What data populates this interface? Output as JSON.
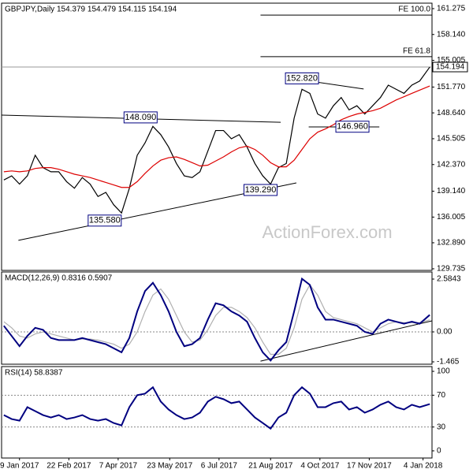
{
  "chart_data": [
    {
      "type": "line",
      "title": "GBPJPY,Daily 154.379 154.479 154.115 154.194",
      "watermark": "ActionForex.com",
      "xlim": [
        "2016-12-24",
        "2018-01-12"
      ],
      "ylim": [
        129.54,
        161.94
      ],
      "yticks": [
        {
          "value": 161.275,
          "label": "161.275"
        },
        {
          "value": 158.14,
          "label": "158.140"
        },
        {
          "value": 155.005,
          "label": "155.005"
        },
        {
          "value": 151.77,
          "label": "151.770"
        },
        {
          "value": 148.64,
          "label": "148.640"
        },
        {
          "value": 145.505,
          "label": "145.505"
        },
        {
          "value": 142.37,
          "label": "142.370"
        },
        {
          "value": 139.14,
          "label": "139.140"
        },
        {
          "value": 136.005,
          "label": "136.005"
        },
        {
          "value": 132.89,
          "label": "132.890"
        },
        {
          "value": 129.735,
          "label": "129.735"
        }
      ],
      "x": [
        "2016-12-26",
        "2017-01-02",
        "2017-01-09",
        "2017-01-16",
        "2017-01-23",
        "2017-01-30",
        "2017-02-06",
        "2017-02-13",
        "2017-02-20",
        "2017-02-27",
        "2017-03-06",
        "2017-03-13",
        "2017-03-20",
        "2017-03-27",
        "2017-04-03",
        "2017-04-10",
        "2017-04-17",
        "2017-04-24",
        "2017-05-01",
        "2017-05-08",
        "2017-05-15",
        "2017-05-22",
        "2017-05-29",
        "2017-06-05",
        "2017-06-12",
        "2017-06-19",
        "2017-06-26",
        "2017-07-03",
        "2017-07-10",
        "2017-07-17",
        "2017-07-24",
        "2017-07-31",
        "2017-08-07",
        "2017-08-14",
        "2017-08-21",
        "2017-08-28",
        "2017-09-04",
        "2017-09-11",
        "2017-09-18",
        "2017-09-25",
        "2017-10-02",
        "2017-10-09",
        "2017-10-16",
        "2017-10-23",
        "2017-10-30",
        "2017-11-06",
        "2017-11-13",
        "2017-11-20",
        "2017-11-27",
        "2017-12-04",
        "2017-12-11",
        "2017-12-18",
        "2017-12-25",
        "2018-01-01",
        "2018-01-10"
      ],
      "series": [
        {
          "color": "#000000",
          "values": [
            140.5,
            141.0,
            140.0,
            141.0,
            143.5,
            142.0,
            141.5,
            141.5,
            140.3,
            139.5,
            140.8,
            140.0,
            138.5,
            139.0,
            137.5,
            136.5,
            139.5,
            143.5,
            145.0,
            147.0,
            146.0,
            144.5,
            142.5,
            141.0,
            140.8,
            141.5,
            144.0,
            146.5,
            146.5,
            145.5,
            146.0,
            144.5,
            142.5,
            141.0,
            140.0,
            142.0,
            142.5,
            148.0,
            151.5,
            151.0,
            148.5,
            148.0,
            149.5,
            150.5,
            149.0,
            149.5,
            148.5,
            149.5,
            150.5,
            152.0,
            151.5,
            151.0,
            152.0,
            152.5,
            154.194
          ]
        },
        {
          "color": "#dd0000",
          "values": [
            141.5,
            141.6,
            141.5,
            141.6,
            141.9,
            142.0,
            142.0,
            141.8,
            141.5,
            141.2,
            141.0,
            140.8,
            140.5,
            140.2,
            139.9,
            139.6,
            139.6,
            140.3,
            141.3,
            142.2,
            142.9,
            143.2,
            143.3,
            143.0,
            142.6,
            142.2,
            142.3,
            142.8,
            143.3,
            143.9,
            144.4,
            144.6,
            144.2,
            143.5,
            142.6,
            142.1,
            142.1,
            142.9,
            144.2,
            145.5,
            146.3,
            146.7,
            147.2,
            147.8,
            148.2,
            148.5,
            148.7,
            148.9,
            149.2,
            149.7,
            150.2,
            150.6,
            151.0,
            151.4,
            151.9
          ]
        }
      ],
      "last": 154.194,
      "levels": [
        {
          "x": "2017-08-12",
          "value": 160.5,
          "label": "FE 100.0"
        },
        {
          "x": "2017-08-12",
          "value": 155.45,
          "label": "FE 61.8"
        }
      ],
      "trendlines": [
        {
          "x": [
            "2016-12-24",
            "2017-08-30"
          ],
          "y": [
            148.37,
            147.5
          ]
        },
        {
          "x": [
            "2017-01-08",
            "2017-09-13"
          ],
          "y": [
            133.18,
            140.15
          ]
        },
        {
          "x": [
            "2017-09-11",
            "2017-11-12"
          ],
          "y": [
            152.77,
            151.53
          ]
        },
        {
          "x": [
            "2017-09-24",
            "2017-11-26"
          ],
          "y": [
            146.94,
            146.94
          ]
        }
      ],
      "annotations": [
        {
          "x": "2017-09-18",
          "value": 152.82,
          "label": "152.820"
        },
        {
          "x": "2017-04-27",
          "value": 148.09,
          "label": "148.090"
        },
        {
          "x": "2017-11-02",
          "value": 146.96,
          "label": "146.960"
        },
        {
          "x": "2017-08-12",
          "value": 139.29,
          "label": "139.290"
        },
        {
          "x": "2017-03-26",
          "value": 135.58,
          "label": "135.580"
        }
      ]
    },
    {
      "type": "line",
      "title": "MACD(12,26,9) 0.8316 0.5907",
      "xlim": [
        "2016-12-24",
        "2018-01-12"
      ],
      "ylim": [
        -1.581,
        2.931
      ],
      "yticks": [
        2.5843,
        {
          "value": 0,
          "label": "0.00"
        },
        -1.465
      ],
      "hlines": [
        0
      ],
      "x": [
        "2016-12-26",
        "2017-01-02",
        "2017-01-09",
        "2017-01-16",
        "2017-01-23",
        "2017-01-30",
        "2017-02-06",
        "2017-02-13",
        "2017-02-20",
        "2017-02-27",
        "2017-03-06",
        "2017-03-13",
        "2017-03-20",
        "2017-03-27",
        "2017-04-03",
        "2017-04-10",
        "2017-04-17",
        "2017-04-24",
        "2017-05-01",
        "2017-05-08",
        "2017-05-15",
        "2017-05-22",
        "2017-05-29",
        "2017-06-05",
        "2017-06-12",
        "2017-06-19",
        "2017-06-26",
        "2017-07-03",
        "2017-07-10",
        "2017-07-17",
        "2017-07-24",
        "2017-07-31",
        "2017-08-07",
        "2017-08-14",
        "2017-08-21",
        "2017-08-28",
        "2017-09-04",
        "2017-09-11",
        "2017-09-18",
        "2017-09-25",
        "2017-10-02",
        "2017-10-09",
        "2017-10-16",
        "2017-10-23",
        "2017-10-30",
        "2017-11-06",
        "2017-11-13",
        "2017-11-20",
        "2017-11-27",
        "2017-12-04",
        "2017-12-11",
        "2017-12-18",
        "2017-12-25",
        "2018-01-01",
        "2018-01-10"
      ],
      "series": [
        {
          "color": "#b0b0b0",
          "values": [
            0.5,
            0.2,
            -0.2,
            -0.3,
            -0.1,
            0.0,
            -0.1,
            -0.2,
            -0.3,
            -0.4,
            -0.35,
            -0.35,
            -0.4,
            -0.5,
            -0.6,
            -0.8,
            -0.6,
            0.0,
            1.0,
            1.8,
            2.1,
            1.6,
            0.8,
            0.0,
            -0.5,
            -0.4,
            0.1,
            0.8,
            1.2,
            1.2,
            1.0,
            0.7,
            0.2,
            -0.5,
            -1.1,
            -1.1,
            -0.8,
            0.2,
            1.6,
            2.3,
            1.8,
            1.0,
            0.7,
            0.6,
            0.5,
            0.4,
            0.2,
            0.0,
            0.2,
            0.4,
            0.5,
            0.45,
            0.45,
            0.45,
            0.5907
          ]
        },
        {
          "color": "#000080",
          "values": [
            0.3,
            -0.2,
            -0.7,
            -0.2,
            0.2,
            0.1,
            -0.3,
            -0.4,
            -0.4,
            -0.4,
            -0.3,
            -0.4,
            -0.5,
            -0.6,
            -0.8,
            -1.0,
            -0.3,
            1.0,
            2.0,
            2.4,
            1.8,
            1.0,
            0.0,
            -0.7,
            -0.6,
            -0.3,
            0.6,
            1.4,
            1.3,
            1.0,
            0.8,
            0.5,
            -0.3,
            -1.0,
            -1.4,
            -0.9,
            -0.5,
            1.0,
            2.6,
            2.3,
            1.2,
            0.6,
            0.6,
            0.5,
            0.4,
            0.3,
            0.0,
            -0.1,
            0.4,
            0.6,
            0.5,
            0.4,
            0.5,
            0.4,
            0.8316
          ]
        }
      ],
      "trendlines": [
        {
          "x": [
            "2017-08-12",
            "2018-01-12"
          ],
          "y": [
            -1.43,
            0.54
          ]
        }
      ]
    },
    {
      "type": "line",
      "title": "RSI(14) 58.8387",
      "xlim": [
        "2016-12-24",
        "2018-01-12"
      ],
      "ylim": [
        -9,
        106
      ],
      "yticks": [
        100,
        70,
        30,
        0
      ],
      "hlines": [
        70,
        30
      ],
      "xticks": [
        {
          "value": "2017-01-09",
          "label": "9 Jan 2017"
        },
        {
          "value": "2017-02-22",
          "label": "22 Feb 2017"
        },
        {
          "value": "2017-04-07",
          "label": "7 Apr 2017"
        },
        {
          "value": "2017-05-23",
          "label": "23 May 2017"
        },
        {
          "value": "2017-07-06",
          "label": "6 Jul 2017"
        },
        {
          "value": "2017-08-21",
          "label": "21 Aug 2017"
        },
        {
          "value": "2017-10-04",
          "label": "4 Oct 2017"
        },
        {
          "value": "2017-11-17",
          "label": "17 Nov 2017"
        },
        {
          "value": "2018-01-04",
          "label": "4 Jan 2018"
        }
      ],
      "x": [
        "2016-12-26",
        "2017-01-02",
        "2017-01-09",
        "2017-01-16",
        "2017-01-23",
        "2017-01-30",
        "2017-02-06",
        "2017-02-13",
        "2017-02-20",
        "2017-02-27",
        "2017-03-06",
        "2017-03-13",
        "2017-03-20",
        "2017-03-27",
        "2017-04-03",
        "2017-04-10",
        "2017-04-17",
        "2017-04-24",
        "2017-05-01",
        "2017-05-08",
        "2017-05-15",
        "2017-05-22",
        "2017-05-29",
        "2017-06-05",
        "2017-06-12",
        "2017-06-19",
        "2017-06-26",
        "2017-07-03",
        "2017-07-10",
        "2017-07-17",
        "2017-07-24",
        "2017-07-31",
        "2017-08-07",
        "2017-08-14",
        "2017-08-21",
        "2017-08-28",
        "2017-09-04",
        "2017-09-11",
        "2017-09-18",
        "2017-09-25",
        "2017-10-02",
        "2017-10-09",
        "2017-10-16",
        "2017-10-23",
        "2017-10-30",
        "2017-11-06",
        "2017-11-13",
        "2017-11-20",
        "2017-11-27",
        "2017-12-04",
        "2017-12-11",
        "2017-12-18",
        "2017-12-25",
        "2018-01-01",
        "2018-01-10"
      ],
      "series": [
        {
          "color": "#000080",
          "values": [
            45,
            40,
            38,
            55,
            50,
            45,
            42,
            45,
            40,
            42,
            45,
            40,
            38,
            40,
            35,
            32,
            55,
            70,
            72,
            80,
            62,
            52,
            45,
            40,
            42,
            48,
            62,
            68,
            65,
            60,
            62,
            52,
            42,
            35,
            28,
            42,
            48,
            70,
            80,
            72,
            55,
            55,
            60,
            62,
            52,
            55,
            48,
            52,
            58,
            62,
            55,
            52,
            58,
            55,
            58.8387
          ]
        }
      ]
    }
  ]
}
